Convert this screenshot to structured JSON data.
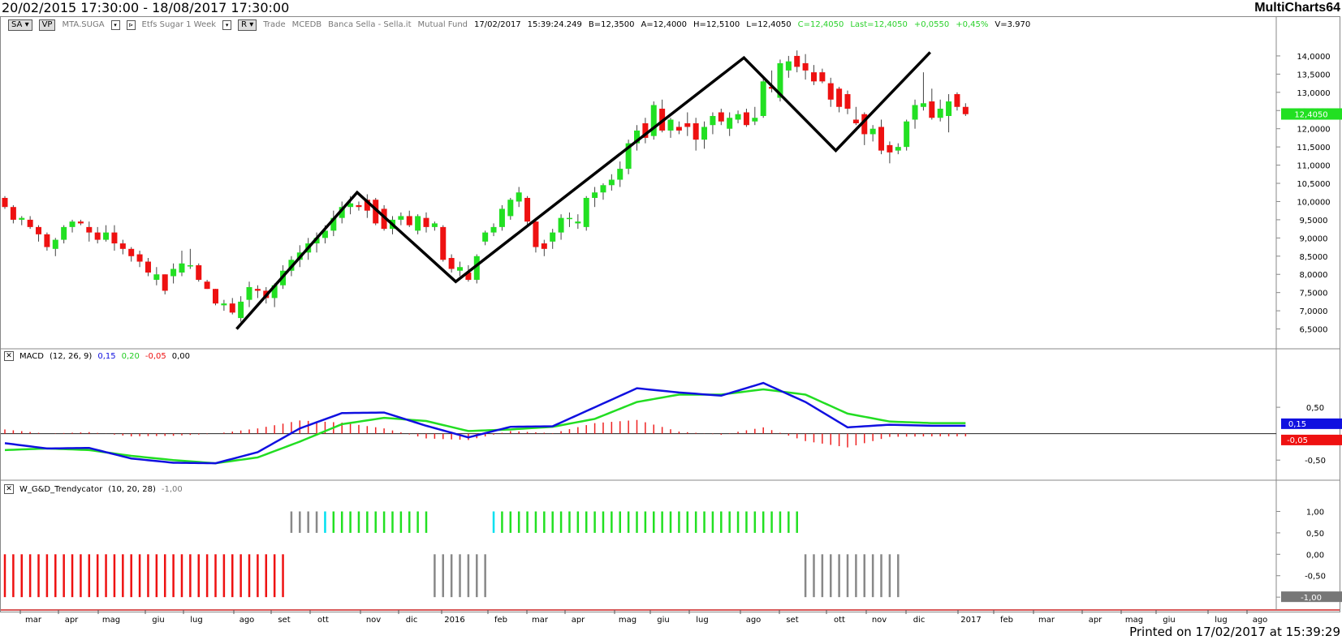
{
  "header": {
    "date_range": "20/02/2015 17:30:00 - 18/08/2017 17:30:00",
    "brand": "MultiCharts64"
  },
  "footer": {
    "printed": "Printed on 17/02/2017 at 15:39:29"
  },
  "infobar": {
    "sa": "SA",
    "vp": "VP",
    "symbol": "MTA.SUGA",
    "resolution": "Etfs Sugar 1 Week",
    "r": "R",
    "mode": "Trade",
    "exchange": "MCEDB",
    "broker": "Banca Sella - Sella.it",
    "type": "Mutual Fund",
    "date": "17/02/2017",
    "time": "15:39:24.249",
    "b": "B=12,3500",
    "a": "A=12,4000",
    "h": "H=12,5100",
    "l": "L=12,4050",
    "c": "C=12,4050",
    "last": "Last=12,4050",
    "chg": "+0,0550",
    "pct": "+0,45%",
    "v": "V=3.970"
  },
  "colors": {
    "up": "#22e022",
    "down": "#ee1111",
    "macd": "#1010e0",
    "signal": "#22dd22",
    "hist": "#ee2222",
    "gray": "#888888",
    "cyan": "#00e0f0"
  },
  "chart_data": [
    {
      "type": "candlestick",
      "ylim": [
        6.0,
        14.6
      ],
      "yticks": [
        "6,5000",
        "7,0000",
        "7,5000",
        "8,0000",
        "8,5000",
        "9,0000",
        "9,5000",
        "10,0000",
        "10,5000",
        "11,0000",
        "11,5000",
        "12,0000",
        "12,5000",
        "13,0000",
        "13,5000",
        "14,0000"
      ],
      "last_price_label": "12,4050",
      "x_months": [
        "mar",
        "apr",
        "mag",
        "giu",
        "lug",
        "ago",
        "set",
        "ott",
        "nov",
        "dic",
        "2016",
        "feb",
        "mar",
        "apr",
        "mag",
        "giu",
        "lug",
        "ago",
        "set",
        "ott",
        "nov",
        "dic",
        "2017",
        "feb",
        "mar",
        "apr",
        "mag",
        "giu",
        "lug",
        "ago"
      ],
      "ohlc": [
        [
          10.1,
          10.15,
          9.8,
          9.85
        ],
        [
          9.85,
          9.9,
          9.4,
          9.5
        ],
        [
          9.5,
          9.6,
          9.35,
          9.55
        ],
        [
          9.5,
          9.6,
          9.25,
          9.3
        ],
        [
          9.3,
          9.35,
          8.9,
          9.1
        ],
        [
          9.1,
          9.15,
          8.65,
          8.75
        ],
        [
          8.7,
          9.0,
          8.5,
          8.95
        ],
        [
          8.95,
          9.35,
          8.85,
          9.3
        ],
        [
          9.3,
          9.5,
          9.15,
          9.45
        ],
        [
          9.45,
          9.5,
          9.35,
          9.4
        ],
        [
          9.3,
          9.45,
          8.9,
          9.15
        ],
        [
          9.15,
          9.3,
          8.85,
          8.95
        ],
        [
          8.95,
          9.35,
          8.9,
          9.15
        ],
        [
          9.15,
          9.35,
          8.65,
          8.85
        ],
        [
          8.85,
          8.95,
          8.55,
          8.7
        ],
        [
          8.7,
          8.75,
          8.35,
          8.5
        ],
        [
          8.55,
          8.65,
          8.2,
          8.35
        ],
        [
          8.35,
          8.45,
          7.95,
          8.05
        ],
        [
          7.85,
          8.2,
          7.7,
          8.0
        ],
        [
          8.0,
          8.0,
          7.45,
          7.55
        ],
        [
          7.95,
          8.3,
          7.75,
          8.15
        ],
        [
          8.05,
          8.65,
          7.95,
          8.3
        ],
        [
          8.25,
          8.7,
          8.15,
          8.25
        ],
        [
          8.25,
          8.3,
          7.8,
          7.85
        ],
        [
          7.8,
          7.85,
          7.6,
          7.6
        ],
        [
          7.6,
          7.6,
          7.15,
          7.2
        ],
        [
          7.15,
          7.3,
          7.0,
          7.2
        ],
        [
          7.2,
          7.35,
          6.9,
          6.95
        ],
        [
          6.8,
          7.4,
          6.7,
          7.25
        ],
        [
          7.3,
          7.8,
          7.1,
          7.65
        ],
        [
          7.6,
          7.7,
          7.35,
          7.55
        ],
        [
          7.55,
          7.65,
          7.2,
          7.35
        ],
        [
          7.35,
          7.75,
          7.1,
          7.7
        ],
        [
          7.7,
          8.25,
          7.6,
          8.1
        ],
        [
          8.1,
          8.5,
          7.95,
          8.4
        ],
        [
          8.4,
          8.8,
          8.2,
          8.6
        ],
        [
          8.6,
          9.0,
          8.4,
          8.85
        ],
        [
          8.85,
          9.15,
          8.6,
          9.0
        ],
        [
          9.0,
          9.35,
          8.85,
          9.2
        ],
        [
          9.2,
          9.75,
          9.05,
          9.55
        ],
        [
          9.55,
          10.0,
          9.4,
          9.85
        ],
        [
          9.85,
          10.15,
          9.65,
          9.95
        ],
        [
          9.9,
          10.0,
          9.75,
          9.85
        ],
        [
          10.05,
          10.2,
          9.55,
          9.75
        ],
        [
          10.05,
          10.1,
          9.35,
          9.4
        ],
        [
          9.8,
          9.9,
          9.2,
          9.25
        ],
        [
          9.25,
          9.6,
          9.1,
          9.5
        ],
        [
          9.5,
          9.7,
          9.35,
          9.6
        ],
        [
          9.6,
          9.75,
          9.3,
          9.35
        ],
        [
          9.2,
          9.65,
          9.1,
          9.6
        ],
        [
          9.55,
          9.7,
          9.15,
          9.3
        ],
        [
          9.3,
          9.45,
          9.2,
          9.4
        ],
        [
          9.3,
          9.35,
          8.35,
          8.4
        ],
        [
          8.45,
          8.55,
          8.05,
          8.15
        ],
        [
          8.1,
          8.35,
          7.95,
          8.2
        ],
        [
          8.05,
          8.25,
          7.8,
          7.85
        ],
        [
          7.85,
          8.55,
          7.75,
          8.5
        ],
        [
          8.9,
          9.2,
          8.8,
          9.15
        ],
        [
          9.15,
          9.4,
          9.05,
          9.3
        ],
        [
          9.3,
          9.9,
          9.2,
          9.8
        ],
        [
          9.6,
          10.1,
          9.5,
          10.05
        ],
        [
          10.0,
          10.4,
          9.85,
          10.25
        ],
        [
          10.1,
          10.15,
          9.35,
          9.45
        ],
        [
          9.45,
          9.55,
          8.6,
          8.75
        ],
        [
          8.85,
          8.95,
          8.5,
          8.7
        ],
        [
          8.9,
          9.25,
          8.7,
          9.15
        ],
        [
          9.15,
          9.65,
          8.95,
          9.55
        ],
        [
          9.55,
          9.7,
          9.3,
          9.55
        ],
        [
          9.4,
          9.65,
          9.25,
          9.45
        ],
        [
          9.3,
          10.15,
          9.2,
          10.1
        ],
        [
          10.1,
          10.4,
          9.85,
          10.25
        ],
        [
          10.25,
          10.5,
          10.05,
          10.45
        ],
        [
          10.45,
          10.75,
          10.3,
          10.6
        ],
        [
          10.6,
          11.1,
          10.4,
          10.9
        ],
        [
          10.9,
          11.7,
          10.75,
          11.6
        ],
        [
          11.6,
          12.1,
          11.4,
          11.95
        ],
        [
          12.15,
          12.3,
          11.6,
          11.75
        ],
        [
          11.8,
          12.75,
          11.7,
          12.65
        ],
        [
          12.55,
          12.8,
          11.9,
          11.95
        ],
        [
          11.95,
          12.3,
          11.75,
          12.25
        ],
        [
          12.05,
          12.2,
          11.85,
          11.95
        ],
        [
          12.15,
          12.45,
          11.8,
          12.05
        ],
        [
          12.15,
          12.3,
          11.4,
          11.7
        ],
        [
          11.7,
          12.2,
          11.45,
          12.05
        ],
        [
          12.1,
          12.45,
          11.85,
          12.35
        ],
        [
          12.45,
          12.55,
          12.1,
          12.2
        ],
        [
          12.0,
          12.45,
          11.8,
          12.3
        ],
        [
          12.25,
          12.5,
          12.15,
          12.4
        ],
        [
          12.45,
          12.55,
          12.05,
          12.1
        ],
        [
          12.2,
          12.6,
          12.1,
          12.3
        ],
        [
          12.35,
          13.4,
          12.3,
          13.3
        ],
        [
          13.15,
          13.6,
          13.0,
          13.1
        ],
        [
          12.85,
          13.9,
          12.75,
          13.8
        ],
        [
          13.6,
          14.0,
          13.4,
          13.85
        ],
        [
          14.0,
          14.15,
          13.55,
          13.7
        ],
        [
          13.8,
          14.05,
          13.35,
          13.6
        ],
        [
          13.55,
          13.75,
          13.2,
          13.3
        ],
        [
          13.55,
          13.65,
          13.25,
          13.3
        ],
        [
          13.25,
          13.4,
          12.6,
          12.8
        ],
        [
          13.1,
          13.15,
          12.45,
          12.6
        ],
        [
          12.95,
          13.05,
          12.4,
          12.55
        ],
        [
          12.25,
          12.6,
          12.1,
          12.15
        ],
        [
          12.4,
          12.45,
          11.55,
          11.85
        ],
        [
          11.85,
          12.1,
          11.65,
          12.0
        ],
        [
          12.05,
          12.25,
          11.3,
          11.4
        ],
        [
          11.55,
          11.65,
          11.05,
          11.35
        ],
        [
          11.4,
          11.6,
          11.3,
          11.5
        ],
        [
          11.5,
          12.25,
          11.4,
          12.2
        ],
        [
          12.25,
          12.8,
          12.0,
          12.65
        ],
        [
          12.6,
          13.55,
          12.5,
          12.7
        ],
        [
          12.75,
          13.1,
          12.25,
          12.3
        ],
        [
          12.3,
          12.8,
          12.2,
          12.55
        ],
        [
          12.35,
          12.95,
          11.9,
          12.75
        ],
        [
          12.95,
          13.0,
          12.5,
          12.6
        ],
        [
          12.6,
          12.7,
          12.35,
          12.4
        ]
      ],
      "trendline": [
        [
          27.5,
          6.5
        ],
        [
          41.8,
          10.25
        ],
        [
          53.5,
          7.8
        ],
        [
          87.7,
          13.95
        ],
        [
          98.6,
          11.4
        ],
        [
          109.8,
          14.1
        ]
      ]
    },
    {
      "type": "line",
      "title": "MACD",
      "params": "(12, 26, 9)",
      "values": [
        "0,15",
        "0,20",
        "-0,05",
        "0,00"
      ],
      "ylim": [
        -0.85,
        1.3
      ],
      "yticks": [
        "0,50",
        "-0,50"
      ],
      "series": [
        {
          "name": "MACD",
          "x": [
            0,
            5,
            10,
            15,
            20,
            25,
            30,
            35,
            40,
            45,
            50,
            55,
            60,
            65,
            70,
            75,
            80,
            85,
            90,
            95,
            100,
            105,
            110
          ],
          "y": [
            -0.18,
            -0.28,
            -0.27,
            -0.47,
            -0.55,
            -0.56,
            -0.35,
            0.1,
            0.39,
            0.4,
            0.15,
            -0.07,
            0.13,
            0.14,
            0.5,
            0.86,
            0.78,
            0.72,
            0.96,
            0.6,
            0.12,
            0.17,
            0.15
          ]
        },
        {
          "name": "Signal",
          "x": [
            0,
            5,
            10,
            15,
            20,
            25,
            30,
            35,
            40,
            45,
            50,
            55,
            60,
            65,
            70,
            75,
            80,
            85,
            90,
            95,
            100,
            105,
            110
          ],
          "y": [
            -0.31,
            -0.28,
            -0.31,
            -0.42,
            -0.5,
            -0.56,
            -0.45,
            -0.15,
            0.18,
            0.3,
            0.24,
            0.05,
            0.08,
            0.13,
            0.28,
            0.6,
            0.74,
            0.74,
            0.84,
            0.74,
            0.38,
            0.23,
            0.2
          ]
        },
        {
          "name": "Histogram",
          "x": [
            0,
            5,
            10,
            15,
            20,
            25,
            30,
            35,
            40,
            45,
            50,
            55,
            60,
            65,
            70,
            75,
            80,
            85,
            90,
            95,
            100,
            105,
            110
          ],
          "y": [
            0.08,
            0.0,
            0.03,
            -0.05,
            -0.04,
            0.0,
            0.1,
            0.25,
            0.21,
            0.1,
            -0.09,
            -0.12,
            0.05,
            0.01,
            0.2,
            0.26,
            0.04,
            -0.02,
            0.12,
            -0.14,
            -0.26,
            -0.06,
            -0.05
          ]
        }
      ],
      "side_labels": [
        "0,15",
        "-0,05"
      ]
    },
    {
      "type": "bar",
      "title": "W_G&D_Trendycator",
      "params": "(10, 20, 28)",
      "value": "-1,00",
      "ylim": [
        -1.3,
        1.35
      ],
      "yticks": [
        "1,00",
        "0,50",
        "0,00",
        "-0,50",
        "-1,00"
      ],
      "segments": [
        {
          "from": 0,
          "to": 33,
          "state": -1,
          "color": "red"
        },
        {
          "from": 34,
          "to": 37,
          "state": 1,
          "color": "gray"
        },
        {
          "from": 38,
          "to": 38,
          "state": 1,
          "color": "cyan"
        },
        {
          "from": 39,
          "to": 50,
          "state": 1,
          "color": "green"
        },
        {
          "from": 51,
          "to": 57,
          "state": -1,
          "color": "gray"
        },
        {
          "from": 58,
          "to": 58,
          "state": 1,
          "color": "cyan"
        },
        {
          "from": 59,
          "to": 94,
          "state": 1,
          "color": "green"
        },
        {
          "from": 95,
          "to": 106,
          "state": -1,
          "color": "gray"
        }
      ],
      "value_label": "-1,00"
    }
  ]
}
